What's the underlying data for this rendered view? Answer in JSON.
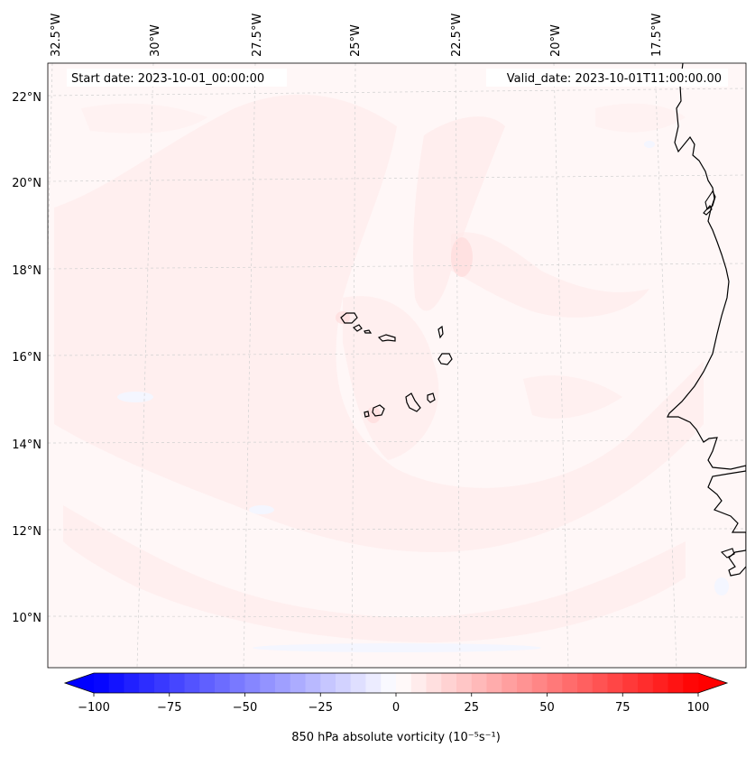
{
  "map": {
    "start_date": "Start date: 2023-10-01_00:00:00",
    "valid_date": "Valid_date: 2023-10-01T11:00:00.00",
    "longitude_labels": [
      "32.5°W",
      "30°W",
      "27.5°W",
      "25°W",
      "22.5°W",
      "20°W",
      "17.5°W"
    ],
    "latitude_labels": [
      "22°N",
      "20°N",
      "18°N",
      "16°N",
      "14°N",
      "12°N",
      "10°N"
    ],
    "field": "850 hPa absolute vorticity",
    "colors": {
      "negative": "#0000ff",
      "zero": "#ffffff",
      "positive": "#ff0000",
      "coastline": "#000000",
      "background_field": "#fff6f6",
      "gridline": "#cccccc"
    }
  },
  "colorbar": {
    "label": "850 hPa absolute vorticity (10⁻⁵s⁻¹)",
    "min": -100,
    "max": 100,
    "ticks": [
      "−100",
      "−75",
      "−50",
      "−25",
      "0",
      "25",
      "50",
      "75",
      "100"
    ]
  }
}
